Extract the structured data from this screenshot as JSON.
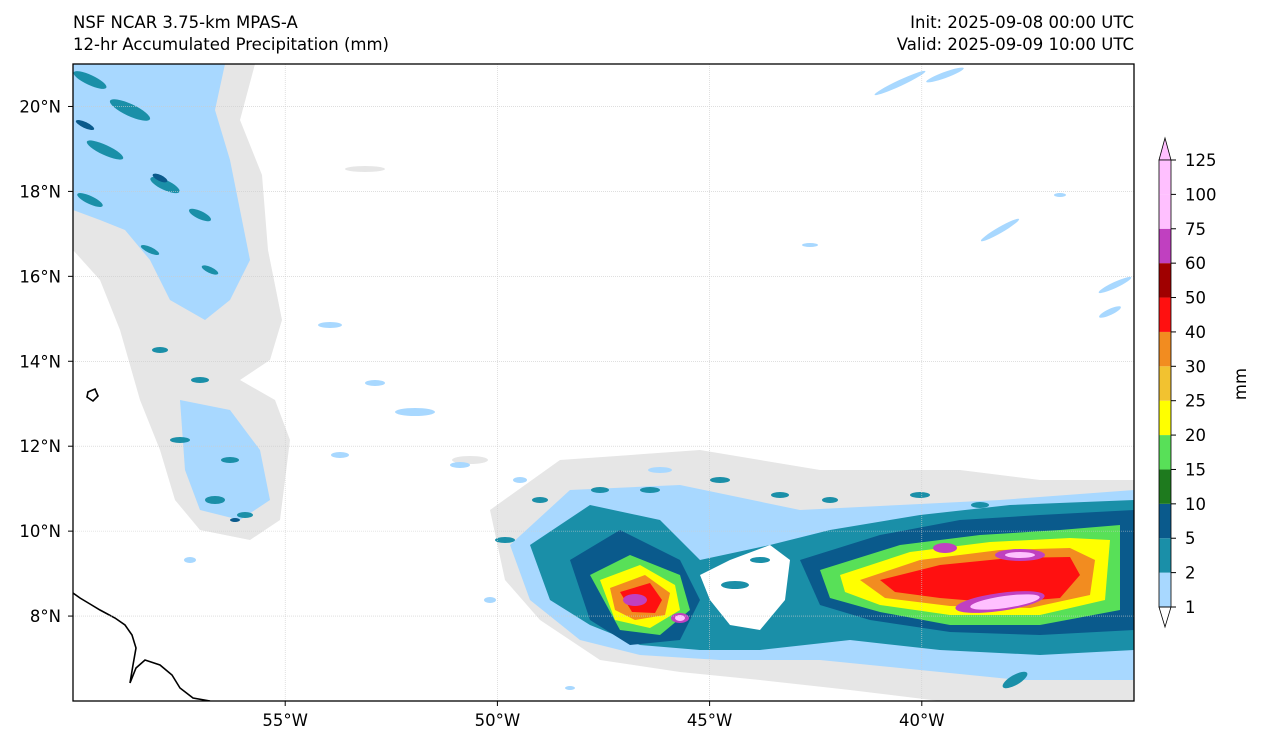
{
  "header": {
    "model": "NSF NCAR 3.75-km MPAS-A",
    "field": "12-hr Accumulated Precipitation (mm)",
    "init": "Init: 2025-09-08 00:00 UTC",
    "valid": "Valid: 2025-09-09 10:00 UTC"
  },
  "map": {
    "lon_range": [
      -60,
      -35
    ],
    "lat_range": [
      6,
      21
    ],
    "lon_ticks": [
      {
        "value": -55,
        "label": "55°W"
      },
      {
        "value": -50,
        "label": "50°W"
      },
      {
        "value": -45,
        "label": "45°W"
      },
      {
        "value": -40,
        "label": "40°W"
      }
    ],
    "lat_ticks": [
      {
        "value": 8,
        "label": "8°N"
      },
      {
        "value": 10,
        "label": "10°N"
      },
      {
        "value": 12,
        "label": "12°N"
      },
      {
        "value": 14,
        "label": "14°N"
      },
      {
        "value": 16,
        "label": "16°N"
      },
      {
        "value": 18,
        "label": "18°N"
      },
      {
        "value": 20,
        "label": "20°N"
      }
    ],
    "gridlines": true
  },
  "colorbar": {
    "unit_label": "mm",
    "levels": [
      {
        "label": "1",
        "color": "#e6e6e6"
      },
      {
        "label": "2",
        "color": "#a8d8ff"
      },
      {
        "label": "5",
        "color": "#1a8fa8"
      },
      {
        "label": "10",
        "color": "#0a5a8c"
      },
      {
        "label": "15",
        "color": "#1e7a1e"
      },
      {
        "label": "20",
        "color": "#58e058"
      },
      {
        "label": "25",
        "color": "#ffff00"
      },
      {
        "label": "30",
        "color": "#f2c230"
      },
      {
        "label": "40",
        "color": "#f28c20"
      },
      {
        "label": "50",
        "color": "#ff1010"
      },
      {
        "label": "60",
        "color": "#a00000"
      },
      {
        "label": "75",
        "color": "#c040c0"
      },
      {
        "label": "100",
        "color": "#ffc0ff"
      },
      {
        "label": "125",
        "color": "#ffffff"
      }
    ]
  }
}
